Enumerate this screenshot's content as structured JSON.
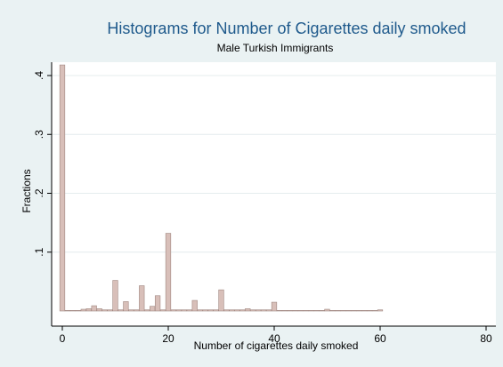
{
  "chart_data": {
    "type": "bar",
    "title": "Histograms for Number of Cigarettes daily smoked",
    "subtitle": "Male Turkish Immigrants",
    "xlabel": "Number of cigarettes daily smoked",
    "ylabel": "Fractions",
    "xlim": [
      0,
      80
    ],
    "ylim": [
      0,
      0.42
    ],
    "bin_width": 1,
    "x_ticks": [
      {
        "value": 0,
        "label": "0"
      },
      {
        "value": 20,
        "label": "20"
      },
      {
        "value": 40,
        "label": "40"
      },
      {
        "value": 60,
        "label": "60"
      },
      {
        "value": 80,
        "label": "80"
      }
    ],
    "y_ticks": [
      {
        "value": 0.1,
        "label": ".1"
      },
      {
        "value": 0.2,
        "label": ".2"
      },
      {
        "value": 0.3,
        "label": ".3"
      },
      {
        "value": 0.4,
        "label": ".4"
      }
    ],
    "grid": true,
    "legend": "none",
    "x": [
      0,
      1,
      2,
      3,
      4,
      5,
      6,
      7,
      8,
      9,
      10,
      11,
      12,
      13,
      14,
      15,
      16,
      17,
      18,
      19,
      20,
      21,
      22,
      23,
      24,
      25,
      26,
      27,
      28,
      29,
      30,
      31,
      32,
      33,
      34,
      35,
      36,
      37,
      38,
      39,
      40,
      41,
      42,
      43,
      44,
      45,
      46,
      47,
      48,
      49,
      50,
      51,
      52,
      53,
      54,
      55,
      56,
      57,
      58,
      59,
      60
    ],
    "values": [
      0.418,
      0.001,
      0.001,
      0.001,
      0.003,
      0.004,
      0.009,
      0.004,
      0.002,
      0.002,
      0.052,
      0.002,
      0.016,
      0.002,
      0.002,
      0.043,
      0.002,
      0.008,
      0.026,
      0.002,
      0.132,
      0.002,
      0.002,
      0.002,
      0.002,
      0.018,
      0.002,
      0.002,
      0.002,
      0.002,
      0.036,
      0.002,
      0.002,
      0.002,
      0.002,
      0.004,
      0.002,
      0.002,
      0.002,
      0.002,
      0.015,
      0.001,
      0.001,
      0.001,
      0.001,
      0.001,
      0.001,
      0.001,
      0.001,
      0.001,
      0.003,
      0.001,
      0.001,
      0.001,
      0.001,
      0.001,
      0.001,
      0.001,
      0.001,
      0.001,
      0.002
    ],
    "colors": {
      "bar_fill": "#d8bfb9",
      "bar_stroke": "#a08780",
      "title": "#1f5a8c",
      "background": "#eaf2f3",
      "plot_background": "#ffffff",
      "grid": "#e4ecee",
      "axis": "#000000"
    }
  }
}
